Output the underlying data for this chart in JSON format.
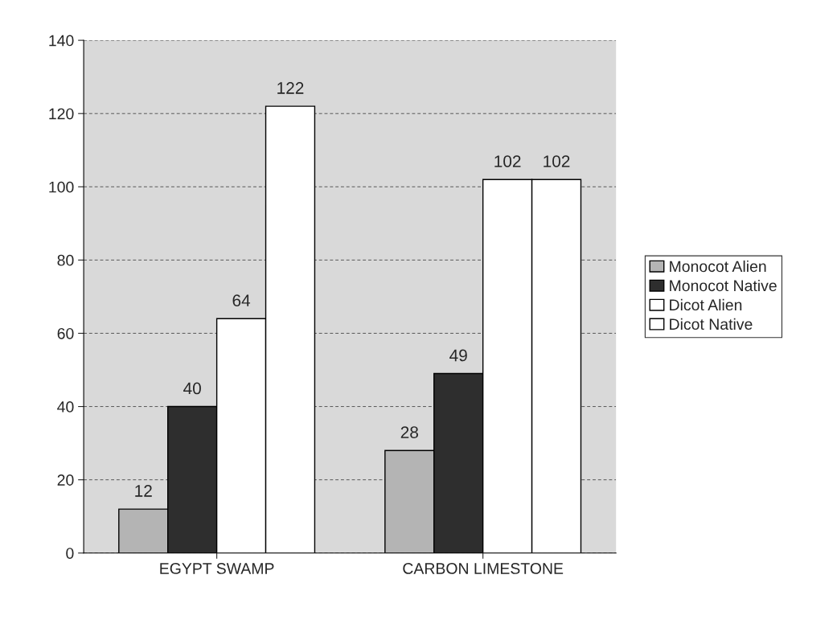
{
  "chart_data": {
    "type": "bar",
    "categories": [
      "EGYPT SWAMP",
      "CARBON LIMESTONE"
    ],
    "series": [
      {
        "name": "Monocot Alien",
        "color": "#b4b4b4",
        "values": [
          12,
          28
        ]
      },
      {
        "name": "Monocot Native",
        "color": "#2e2e2e",
        "values": [
          40,
          49
        ]
      },
      {
        "name": "Dicot Alien",
        "color": "#ffffff",
        "values": [
          64,
          102
        ]
      },
      {
        "name": "Dicot Native",
        "color": "#ffffff",
        "values": [
          122,
          102
        ]
      }
    ],
    "ylim": [
      0,
      140
    ],
    "yticks": [
      0,
      20,
      40,
      60,
      80,
      100,
      120,
      140
    ],
    "grid": "y",
    "legend": "right",
    "data_labels": true
  }
}
